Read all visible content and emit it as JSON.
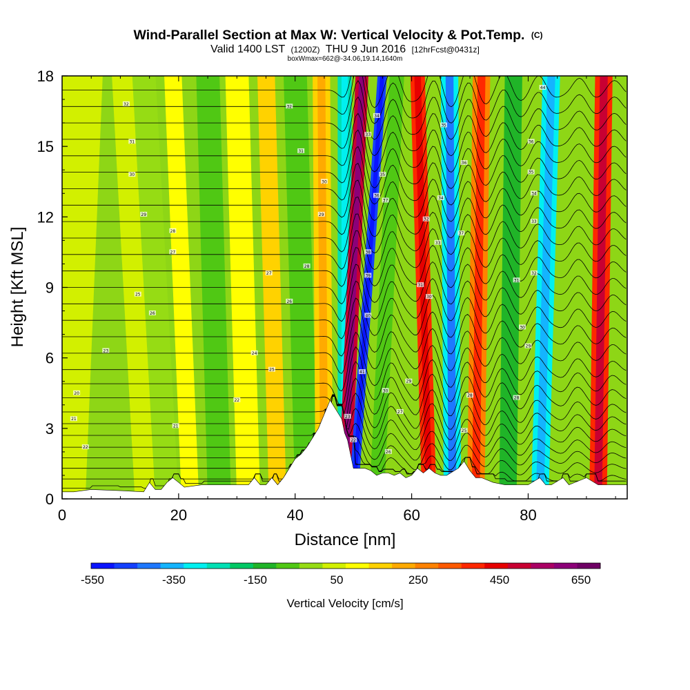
{
  "chart_data": {
    "type": "heatmap",
    "title": "Wind-Parallel Section at Max W: Vertical Velocity & Pot.Temp.",
    "title_mark": "(C)",
    "subtitle": {
      "valid": "Valid 1400 LST",
      "utc": "(1200Z)",
      "date": "THU 9 Jun 2016",
      "fcst": "[12hrFcst@0431z]"
    },
    "box_note": "boxWmax=662@-34.06,19.14,1640m",
    "xlabel": "Distance [nm]",
    "ylabel": "Height [Kft MSL]",
    "xlim": [
      0,
      97
    ],
    "ylim": [
      0,
      18
    ],
    "x_ticks": [
      0,
      20,
      40,
      60,
      80
    ],
    "y_ticks": [
      0,
      3,
      6,
      9,
      12,
      15,
      18
    ],
    "max_w": 662,
    "colorbar": {
      "label": "Vertical Velocity [cm/s]",
      "ticks": [
        -550,
        -350,
        -150,
        50,
        250,
        450,
        650
      ],
      "colors": [
        "#0a14ff",
        "#1440ff",
        "#1e78ff",
        "#14b4ff",
        "#00f0f0",
        "#00e0b4",
        "#00c864",
        "#20b428",
        "#50c814",
        "#96dc14",
        "#d2f000",
        "#ffff00",
        "#ffd200",
        "#ffaa00",
        "#ff8200",
        "#ff5a00",
        "#ff2800",
        "#e60000",
        "#c80032",
        "#aa0064",
        "#8c0078",
        "#6e0064"
      ]
    },
    "velocity_bands": [
      {
        "x_top": 3,
        "x_bottom": 0,
        "w": 8,
        "value": 40
      },
      {
        "x_top": 11,
        "x_bottom": 15,
        "w": 5,
        "value": 30
      },
      {
        "x_top": 14,
        "x_bottom": 18,
        "w": 4,
        "value": -30
      },
      {
        "x_top": 19,
        "x_bottom": 22,
        "w": 3,
        "value": 60
      },
      {
        "x_top": 25,
        "x_bottom": 27,
        "w": 4,
        "value": -120
      },
      {
        "x_top": 30,
        "x_bottom": 32,
        "w": 4,
        "value": 70
      },
      {
        "x_top": 35,
        "x_bottom": 37,
        "w": 3,
        "value": 130
      },
      {
        "x_top": 40,
        "x_bottom": 42,
        "w": 4,
        "value": -120
      },
      {
        "x_top": 44.5,
        "x_bottom": 45,
        "w": 3,
        "value": 150
      },
      {
        "x_top": 48.5,
        "x_bottom": 48.5,
        "w": 2.4,
        "value": -300
      },
      {
        "x_top": 51.5,
        "x_bottom": 48.5,
        "w": 2.2,
        "value": 520
      },
      {
        "x_top": 55,
        "x_bottom": 50,
        "w": 1.6,
        "value": -560
      },
      {
        "x_top": 57.5,
        "x_bottom": 54,
        "w": 2.5,
        "value": -120
      },
      {
        "x_top": 61,
        "x_bottom": 63,
        "w": 2.5,
        "value": 380
      },
      {
        "x_top": 66.5,
        "x_bottom": 67,
        "w": 3,
        "value": -380
      },
      {
        "x_top": 72,
        "x_bottom": 71,
        "w": 3,
        "value": 300
      },
      {
        "x_top": 77.5,
        "x_bottom": 76.5,
        "w": 3,
        "value": -150
      },
      {
        "x_top": 84,
        "x_bottom": 82,
        "w": 3,
        "value": -360
      },
      {
        "x_top": 93,
        "x_bottom": 92,
        "w": 3,
        "value": 400
      }
    ],
    "terrain_kft": [
      [
        0,
        0.3
      ],
      [
        2,
        0.3
      ],
      [
        5,
        0.4
      ],
      [
        10,
        0.35
      ],
      [
        14,
        0.3
      ],
      [
        15,
        0.7
      ],
      [
        16,
        0.4
      ],
      [
        17,
        0.4
      ],
      [
        18,
        0.7
      ],
      [
        19,
        0.9
      ],
      [
        20,
        0.7
      ],
      [
        21,
        0.5
      ],
      [
        24,
        0.6
      ],
      [
        26,
        0.6
      ],
      [
        28,
        0.6
      ],
      [
        32,
        0.6
      ],
      [
        33,
        0.9
      ],
      [
        34,
        0.6
      ],
      [
        35,
        0.6
      ],
      [
        36,
        0.9
      ],
      [
        37,
        0.6
      ],
      [
        38,
        0.9
      ],
      [
        39,
        1.3
      ],
      [
        40,
        1.7
      ],
      [
        41,
        1.9
      ],
      [
        42,
        2.2
      ],
      [
        43,
        2.6
      ],
      [
        44,
        3.0
      ],
      [
        45,
        3.6
      ],
      [
        46,
        4.2
      ],
      [
        47,
        3.8
      ],
      [
        48,
        3.4
      ],
      [
        48.5,
        2.8
      ],
      [
        49,
        2.5
      ],
      [
        50,
        1.3
      ],
      [
        51,
        1.3
      ],
      [
        52,
        1.3
      ],
      [
        53,
        1.2
      ],
      [
        54,
        1.0
      ],
      [
        55,
        1.1
      ],
      [
        56,
        1.1
      ],
      [
        57,
        1.0
      ],
      [
        58,
        1.1
      ],
      [
        59,
        0.9
      ],
      [
        60,
        1.0
      ],
      [
        61,
        1.3
      ],
      [
        62,
        1.1
      ],
      [
        63,
        1.3
      ],
      [
        64,
        1.1
      ],
      [
        65,
        1.0
      ],
      [
        66,
        1.0
      ],
      [
        68,
        1.3
      ],
      [
        69,
        1.6
      ],
      [
        70,
        1.2
      ],
      [
        71,
        0.9
      ],
      [
        72,
        0.9
      ],
      [
        74,
        0.7
      ],
      [
        76,
        0.6
      ],
      [
        78,
        0.6
      ],
      [
        80,
        0.6
      ],
      [
        82,
        0.9
      ],
      [
        83,
        0.6
      ],
      [
        84,
        0.6
      ],
      [
        86,
        0.9
      ],
      [
        87,
        0.6
      ],
      [
        90,
        0.9
      ],
      [
        92,
        0.6
      ],
      [
        94,
        0.6
      ],
      [
        97,
        0.6
      ]
    ],
    "theta_contours": {
      "base_levels_kft": [
        0.4,
        0.85,
        1.3,
        1.75,
        2.2,
        2.7,
        3.2,
        3.7,
        4.3,
        4.9,
        5.5,
        6.2,
        6.9,
        7.6,
        8.3,
        9.0,
        9.7,
        10.4,
        11.1,
        11.8,
        12.5,
        13.2,
        13.9,
        14.6,
        15.3,
        16.0,
        16.7,
        17.4
      ],
      "waves": [
        {
          "x": 49,
          "amp": 1.8,
          "w": 2.5
        },
        {
          "x": 55,
          "amp": 1.0,
          "w": 2.8
        },
        {
          "x": 62,
          "amp": 1.1,
          "w": 3.0
        },
        {
          "x": 68,
          "amp": 1.0,
          "w": 3.0
        },
        {
          "x": 74,
          "amp": 0.7,
          "w": 3.0
        },
        {
          "x": 80,
          "amp": 0.6,
          "w": 3.0
        },
        {
          "x": 87,
          "amp": 0.5,
          "w": 3.0
        },
        {
          "x": 93,
          "amp": 0.4,
          "w": 3.0
        }
      ],
      "labels": [
        {
          "x": 2.5,
          "y": 4.5,
          "t": "20"
        },
        {
          "x": 2,
          "y": 3.4,
          "t": "21"
        },
        {
          "x": 4,
          "y": 2.2,
          "t": "22"
        },
        {
          "x": 7.5,
          "y": 6.3,
          "t": "23"
        },
        {
          "x": 13,
          "y": 8.7,
          "t": "25"
        },
        {
          "x": 15.5,
          "y": 7.9,
          "t": "26"
        },
        {
          "x": 19,
          "y": 10.5,
          "t": "27"
        },
        {
          "x": 19,
          "y": 11.4,
          "t": "28"
        },
        {
          "x": 14,
          "y": 12.1,
          "t": "29"
        },
        {
          "x": 12,
          "y": 13.8,
          "t": "30"
        },
        {
          "x": 12,
          "y": 15.2,
          "t": "31"
        },
        {
          "x": 11,
          "y": 16.8,
          "t": "32"
        },
        {
          "x": 33,
          "y": 6.2,
          "t": "24"
        },
        {
          "x": 30,
          "y": 4.2,
          "t": "22"
        },
        {
          "x": 19.5,
          "y": 3.1,
          "t": "21"
        },
        {
          "x": 36,
          "y": 5.5,
          "t": "25"
        },
        {
          "x": 39,
          "y": 8.4,
          "t": "26"
        },
        {
          "x": 35.5,
          "y": 9.6,
          "t": "27"
        },
        {
          "x": 42,
          "y": 9.9,
          "t": "28"
        },
        {
          "x": 44.5,
          "y": 12.1,
          "t": "29"
        },
        {
          "x": 45,
          "y": 13.5,
          "t": "30"
        },
        {
          "x": 41,
          "y": 14.8,
          "t": "31"
        },
        {
          "x": 39,
          "y": 16.7,
          "t": "32"
        },
        {
          "x": 52.5,
          "y": 15.5,
          "t": "33"
        },
        {
          "x": 54,
          "y": 16.3,
          "t": "34"
        },
        {
          "x": 55,
          "y": 13.8,
          "t": "35"
        },
        {
          "x": 54,
          "y": 12.9,
          "t": "36"
        },
        {
          "x": 55.5,
          "y": 12.7,
          "t": "37"
        },
        {
          "x": 52.5,
          "y": 10.5,
          "t": "38"
        },
        {
          "x": 52.5,
          "y": 9.5,
          "t": "39"
        },
        {
          "x": 52.5,
          "y": 7.8,
          "t": "40"
        },
        {
          "x": 51.5,
          "y": 5.4,
          "t": "41"
        },
        {
          "x": 55.5,
          "y": 4.6,
          "t": "30"
        },
        {
          "x": 58,
          "y": 3.7,
          "t": "27"
        },
        {
          "x": 56,
          "y": 2.0,
          "t": "26"
        },
        {
          "x": 49,
          "y": 3.5,
          "t": "23"
        },
        {
          "x": 50,
          "y": 2.5,
          "t": "22"
        },
        {
          "x": 59.5,
          "y": 5.0,
          "t": "29"
        },
        {
          "x": 61.5,
          "y": 9.1,
          "t": "31"
        },
        {
          "x": 63,
          "y": 8.6,
          "t": "30"
        },
        {
          "x": 62.5,
          "y": 11.9,
          "t": "32"
        },
        {
          "x": 64.5,
          "y": 10.9,
          "t": "33"
        },
        {
          "x": 65,
          "y": 12.8,
          "t": "34"
        },
        {
          "x": 65.5,
          "y": 15.9,
          "t": "35"
        },
        {
          "x": 69,
          "y": 14.3,
          "t": "36"
        },
        {
          "x": 68.5,
          "y": 11.3,
          "t": "37"
        },
        {
          "x": 70,
          "y": 4.4,
          "t": "28"
        },
        {
          "x": 69,
          "y": 2.9,
          "t": "25"
        },
        {
          "x": 78,
          "y": 4.3,
          "t": "28"
        },
        {
          "x": 80,
          "y": 6.5,
          "t": "29"
        },
        {
          "x": 79,
          "y": 7.3,
          "t": "30"
        },
        {
          "x": 78,
          "y": 9.3,
          "t": "31"
        },
        {
          "x": 81,
          "y": 9.6,
          "t": "32"
        },
        {
          "x": 81,
          "y": 11.8,
          "t": "33"
        },
        {
          "x": 81,
          "y": 13.0,
          "t": "34"
        },
        {
          "x": 80.5,
          "y": 13.9,
          "t": "35"
        },
        {
          "x": 80.5,
          "y": 15.2,
          "t": "36"
        },
        {
          "x": 82.5,
          "y": 17.5,
          "t": "44"
        }
      ]
    }
  }
}
